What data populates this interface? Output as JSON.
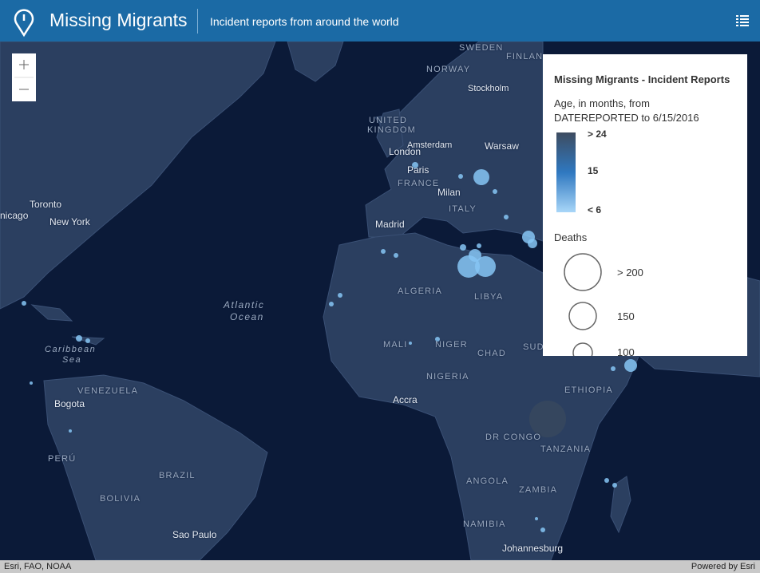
{
  "header": {
    "title": "Missing Migrants",
    "subtitle": "Incident reports from around the world"
  },
  "map": {
    "labels": [
      "SWEDEN",
      "FINLAN",
      "NORWAY",
      "Stockholm",
      "UNITED",
      "KINGDOM",
      "Amsterdam",
      "London",
      "Warsaw",
      "Paris",
      "FRANCE",
      "Milan",
      "ITALY",
      "Madrid",
      "Toronto",
      "nicago",
      "New York",
      "Atlantic",
      "Ocean",
      "ALGERIA",
      "LIBYA",
      "Caribbean",
      "Sea",
      "MALI",
      "NIGER",
      "CHAD",
      "SUD",
      "NIGERIA",
      "VENEZUELA",
      "Bogota",
      "Accra",
      "ETHIOPIA",
      "DR CONGO",
      "TANZANIA",
      "PERÚ",
      "BRAZIL",
      "BOLIVIA",
      "ANGOLA",
      "ZAMBIA",
      "NAMIBIA",
      "Sao Paulo",
      "Johannesburg"
    ]
  },
  "legend": {
    "title": "Missing Migrants - Incident Reports",
    "age_title": "Age, in months, from DATEREPORTED to 6/15/2016",
    "age_stops": [
      "> 24",
      "15",
      "< 6"
    ],
    "deaths_title": "Deaths",
    "death_stops": [
      "> 200",
      "150",
      "100"
    ]
  },
  "footer": {
    "attribution": "Esri, FAO, NOAA",
    "powered_by": "Powered by Esri"
  }
}
